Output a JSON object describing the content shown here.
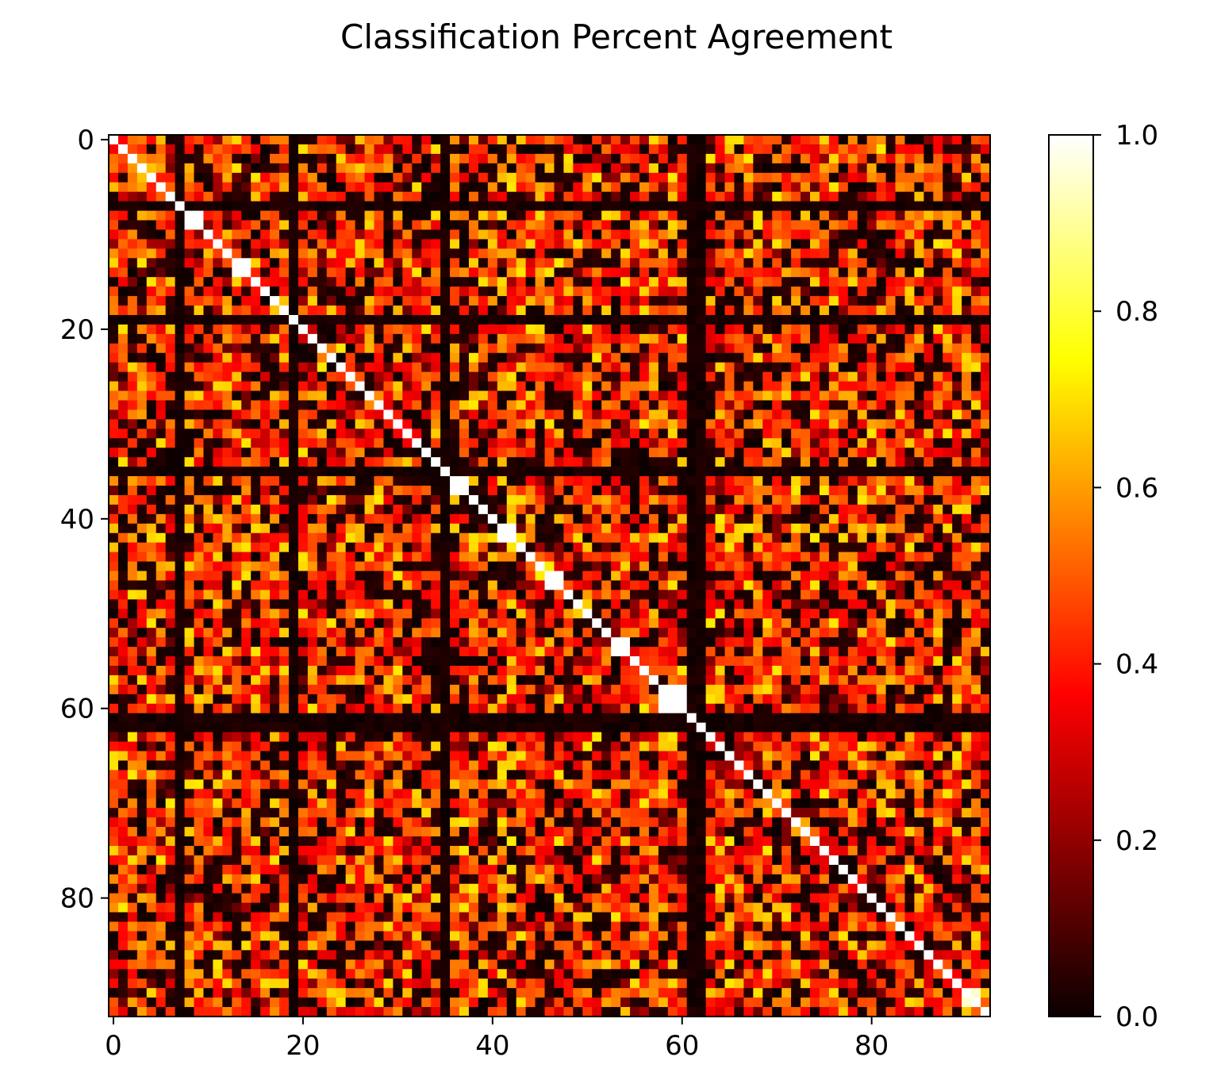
{
  "chart_data": {
    "type": "heatmap",
    "title": "Classification Percent Agreement",
    "xlabel": "",
    "ylabel": "",
    "grid": false,
    "n_rows": 93,
    "n_cols": 93,
    "xlim": [
      -0.5,
      92.5
    ],
    "ylim": [
      92.5,
      -0.5
    ],
    "x_ticks": [
      0,
      20,
      40,
      60,
      80
    ],
    "y_ticks": [
      0,
      20,
      40,
      60,
      80
    ],
    "colormap": "hot",
    "colormap_stops": [
      "#0b0000",
      "#ff2b00",
      "#ffff00",
      "#ffffff"
    ],
    "value_range": [
      0.0,
      1.0
    ],
    "colorbar": {
      "placement": "right",
      "ticks": [
        0.0,
        0.2,
        0.4,
        0.6,
        0.8,
        1.0
      ],
      "tick_labels": [
        "0.0",
        "0.2",
        "0.4",
        "0.6",
        "0.8",
        "1.0"
      ]
    },
    "diagonal_value": 1.0,
    "near_zero_rows": [
      7,
      19,
      35,
      61,
      62
    ],
    "near_zero_cols": [
      7,
      19,
      35,
      61,
      62
    ],
    "white_blocks": [
      {
        "rows": [
          8,
          9
        ],
        "cols": [
          8,
          9
        ],
        "value": 1.0
      },
      {
        "rows": [
          13,
          14
        ],
        "cols": [
          13,
          14
        ],
        "value": 1.0
      },
      {
        "rows": [
          36,
          37
        ],
        "cols": [
          36,
          37
        ],
        "value": 1.0
      },
      {
        "rows": [
          41,
          42
        ],
        "cols": [
          41,
          42
        ],
        "value": 1.0
      },
      {
        "rows": [
          46,
          47
        ],
        "cols": [
          46,
          47
        ],
        "value": 1.0
      },
      {
        "rows": [
          53,
          54
        ],
        "cols": [
          53,
          54
        ],
        "value": 1.0
      },
      {
        "rows": [
          58,
          60
        ],
        "cols": [
          58,
          60
        ],
        "value": 1.0
      },
      {
        "rows": [
          90,
          91
        ],
        "cols": [
          90,
          91
        ],
        "value": 0.95
      }
    ],
    "background_value_range": [
      0.0,
      0.7
    ],
    "typical_value": 0.42
  }
}
